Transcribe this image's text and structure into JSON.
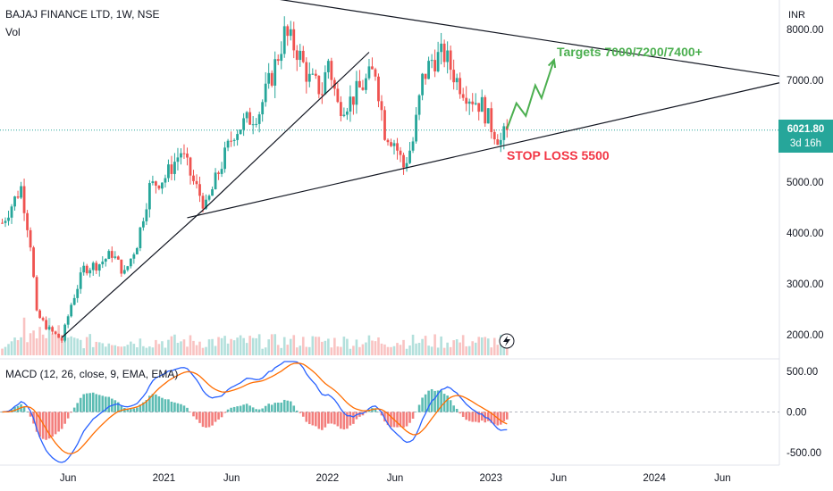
{
  "header": {
    "title": "BAJAJ FINANCE LTD, 1W, NSE",
    "volume_label": "Vol",
    "currency": "INR"
  },
  "macd_label": "MACD (12, 26, close, 9, EMA, EMA)",
  "price_tag": {
    "price": "6021.80",
    "countdown": "3d 16h"
  },
  "annotations": {
    "targets": "Targets 7000/7200/7400+",
    "stop_loss": "STOP LOSS 5500"
  },
  "colors": {
    "up": "#26a69a",
    "down": "#ef5350",
    "target": "#4caf50",
    "stop": "#f23645",
    "macd": "#2962ff",
    "signal": "#ff6d00"
  },
  "chart_data": {
    "type": "candlestick",
    "title": "BAJAJ FINANCE LTD, 1W, NSE",
    "price_axis": {
      "ticks": [
        2000,
        3000,
        4000,
        5000,
        6000,
        7000,
        8000
      ],
      "tick_labels": [
        "2000.00",
        "3000.00",
        "4000.00",
        "5000.00",
        "6000.00",
        "7000.00",
        "8000.00"
      ],
      "range": [
        1600,
        8400
      ],
      "unit": "INR"
    },
    "macd_axis": {
      "ticks": [
        -500,
        0,
        500
      ],
      "tick_labels": [
        "-500.00",
        "0.00",
        "500.00"
      ],
      "range": [
        -620,
        620
      ]
    },
    "time_axis": {
      "tick_labels": [
        "Jun",
        "2021",
        "Jun",
        "2022",
        "Jun",
        "2023",
        "Jun",
        "2024",
        "Jun"
      ],
      "tick_dates": [
        "2020-06",
        "2021-01",
        "2021-06",
        "2022-01",
        "2022-06",
        "2023-01",
        "2023-06",
        "2024-01",
        "2024-06"
      ],
      "range": [
        "2020-01-01",
        "2024-10-06"
      ]
    },
    "price_path": [
      [
        "2020-01-06",
        4200
      ],
      [
        "2020-02-17",
        4900
      ],
      [
        "2020-03-09",
        3800
      ],
      [
        "2020-03-23",
        2400
      ],
      [
        "2020-04-20",
        2100
      ],
      [
        "2020-05-18",
        1900
      ],
      [
        "2020-06-08",
        2600
      ],
      [
        "2020-07-06",
        3300
      ],
      [
        "2020-08-10",
        3400
      ],
      [
        "2020-09-07",
        3600
      ],
      [
        "2020-10-05",
        3200
      ],
      [
        "2020-11-02",
        3800
      ],
      [
        "2020-11-30",
        4900
      ],
      [
        "2021-01-04",
        5100
      ],
      [
        "2021-02-08",
        5600
      ],
      [
        "2021-03-08",
        5000
      ],
      [
        "2021-04-05",
        4500
      ],
      [
        "2021-05-03",
        5200
      ],
      [
        "2021-06-07",
        6000
      ],
      [
        "2021-07-05",
        6200
      ],
      [
        "2021-08-02",
        6400
      ],
      [
        "2021-08-30",
        7100
      ],
      [
        "2021-09-27",
        7900
      ],
      [
        "2021-10-25",
        7600
      ],
      [
        "2021-11-22",
        7000
      ],
      [
        "2021-12-20",
        6800
      ],
      [
        "2022-01-03",
        7400
      ],
      [
        "2022-01-24",
        6500
      ],
      [
        "2022-02-21",
        6600
      ],
      [
        "2022-03-21",
        6900
      ],
      [
        "2022-04-18",
        7200
      ],
      [
        "2022-05-09",
        6000
      ],
      [
        "2022-05-30",
        5800
      ],
      [
        "2022-06-20",
        5300
      ],
      [
        "2022-07-11",
        5800
      ],
      [
        "2022-08-01",
        7000
      ],
      [
        "2022-08-22",
        7400
      ],
      [
        "2022-09-19",
        7500
      ],
      [
        "2022-10-17",
        7000
      ],
      [
        "2022-11-14",
        6700
      ],
      [
        "2022-12-12",
        6500
      ],
      [
        "2023-01-02",
        6100
      ],
      [
        "2023-01-23",
        5800
      ],
      [
        "2023-02-06",
        6021.8
      ]
    ],
    "volume_range": [
      0,
      2400000
    ],
    "macd_range": [
      -500,
      500
    ],
    "trendlines": [
      {
        "from": [
          "2020-05-18",
          1950
        ],
        "to": [
          "2021-03-29",
          4450
        ]
      },
      {
        "from": [
          "2021-03-29",
          4450
        ],
        "to": [
          "2022-04-04",
          7550
        ]
      },
      {
        "from": [
          "2021-09-06",
          8600
        ],
        "to": [
          "2024-10-06",
          7080
        ]
      },
      {
        "from": [
          "2021-02-22",
          4300
        ],
        "to": [
          "2024-10-06",
          6950
        ]
      }
    ],
    "projection": [
      [
        "2023-02-06",
        6050
      ],
      [
        "2023-02-27",
        6550
      ],
      [
        "2023-03-20",
        6300
      ],
      [
        "2023-04-10",
        6900
      ],
      [
        "2023-04-24",
        6650
      ],
      [
        "2023-05-22",
        7400
      ]
    ],
    "current_price": 6021.8
  }
}
